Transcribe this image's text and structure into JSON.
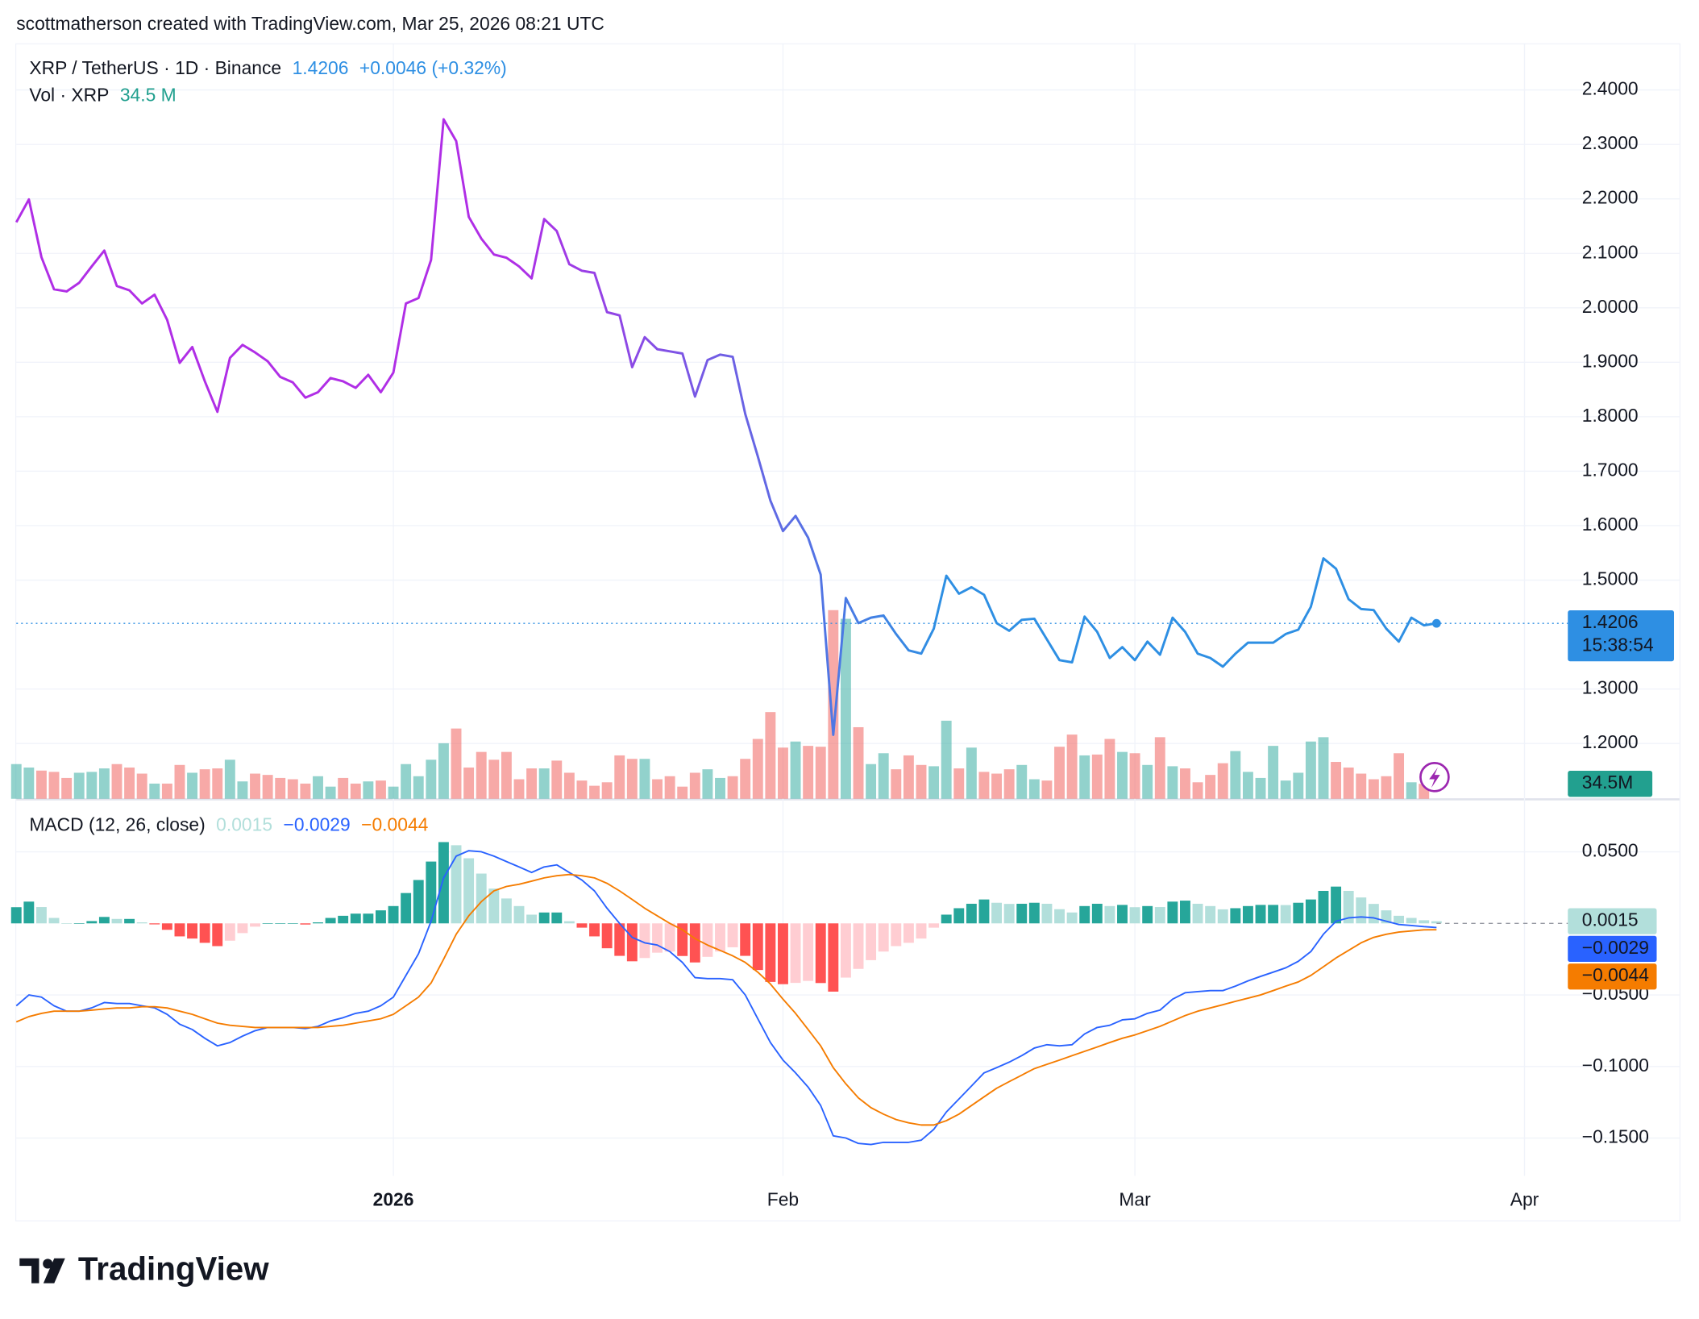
{
  "header": {
    "attribution": "scottmatherson created with TradingView.com, Mar 25, 2026 08:21 UTC"
  },
  "footer": {
    "logo": "TradingView"
  },
  "chart_data": [
    {
      "type": "line",
      "ylim": [
        1.0985,
        2.4856
      ],
      "yticks": [
        {
          "value": 2.4,
          "label": "2.4000"
        },
        {
          "value": 2.3,
          "label": "2.3000"
        },
        {
          "value": 2.2,
          "label": "2.2000"
        },
        {
          "value": 2.1,
          "label": "2.1000"
        },
        {
          "value": 2.0,
          "label": "2.0000"
        },
        {
          "value": 1.9,
          "label": "1.9000"
        },
        {
          "value": 1.8,
          "label": "1.8000"
        },
        {
          "value": 1.7,
          "label": "1.7000"
        },
        {
          "value": 1.6,
          "label": "1.6000"
        },
        {
          "value": 1.5,
          "label": "1.5000"
        },
        {
          "value": 1.3,
          "label": "1.3000"
        },
        {
          "value": 1.2,
          "label": "1.2000"
        }
      ],
      "grid": true,
      "change_label": "+0.0046 (+0.32%)",
      "countdown": "15:38:54",
      "series": [
        {
          "name": "XRP / TetherUS · 1D · Binance",
          "color": [
            "#b02ee6",
            "#2e8fe3"
          ],
          "values": [
            2.157,
            2.199,
            2.093,
            2.034,
            2.03,
            2.046,
            2.076,
            2.105,
            2.04,
            2.032,
            2.008,
            2.024,
            1.978,
            1.899,
            1.928,
            1.865,
            1.809,
            1.908,
            1.932,
            1.918,
            1.902,
            1.873,
            1.863,
            1.835,
            1.845,
            1.871,
            1.865,
            1.853,
            1.877,
            1.845,
            1.881,
            2.008,
            2.018,
            2.088,
            2.346,
            2.306,
            2.167,
            2.127,
            2.098,
            2.092,
            2.076,
            2.054,
            2.163,
            2.141,
            2.08,
            2.068,
            2.064,
            1.992,
            1.986,
            1.891,
            1.946,
            1.924,
            1.92,
            1.916,
            1.837,
            1.904,
            1.914,
            1.91,
            1.805,
            1.727,
            1.646,
            1.59,
            1.618,
            1.578,
            1.51,
            1.216,
            1.467,
            1.421,
            1.431,
            1.435,
            1.401,
            1.371,
            1.365,
            1.411,
            1.508,
            1.475,
            1.487,
            1.473,
            1.421,
            1.407,
            1.427,
            1.429,
            1.391,
            1.353,
            1.349,
            1.433,
            1.405,
            1.357,
            1.377,
            1.353,
            1.387,
            1.363,
            1.431,
            1.405,
            1.365,
            1.357,
            1.341,
            1.365,
            1.385,
            1.385,
            1.385,
            1.401,
            1.409,
            1.451,
            1.54,
            1.521,
            1.465,
            1.447,
            1.445,
            1.411,
            1.387,
            1.431,
            1.417,
            1.4206,
            null,
            null,
            null,
            null,
            null,
            null,
            null
          ]
        },
        {
          "name": "Vol · XRP",
          "type": "bar",
          "up_color": "#26a69a",
          "down_color": "#ef5350",
          "opacity": 0.5,
          "ylim": [
            0,
            1742
          ],
          "last_label": "34.5 M",
          "badge_label": "34.5M",
          "badge_color": "#22a08f",
          "values": [
            80,
            72,
            65,
            62,
            48,
            60,
            62,
            70,
            80,
            72,
            58,
            35,
            35,
            78,
            60,
            68,
            70,
            90,
            40,
            58,
            55,
            48,
            45,
            35,
            52,
            28,
            48,
            35,
            40,
            42,
            28,
            80,
            52,
            90,
            128,
            162,
            72,
            108,
            90,
            108,
            45,
            70,
            70,
            88,
            60,
            42,
            30,
            38,
            100,
            92,
            92,
            45,
            52,
            28,
            60,
            68,
            48,
            52,
            92,
            138,
            200,
            118,
            132,
            122,
            120,
            435,
            415,
            165,
            80,
            105,
            68,
            100,
            78,
            75,
            180,
            70,
            118,
            62,
            58,
            68,
            78,
            45,
            42,
            120,
            148,
            100,
            102,
            138,
            108,
            105,
            78,
            142,
            75,
            70,
            38,
            55,
            82,
            110,
            62,
            48,
            122,
            42,
            60,
            132,
            142,
            85,
            72,
            58,
            45,
            52,
            105,
            38,
            34.5,
            null,
            null,
            null,
            null,
            null,
            null,
            null
          ]
        }
      ]
    },
    {
      "type": "macd",
      "title": "MACD (12, 26, close)",
      "ylim": [
        -0.1765,
        0.0848
      ],
      "yticks": [
        {
          "value": 0.05,
          "label": "0.0500"
        },
        {
          "value": -0.05,
          "label": "−0.0500"
        },
        {
          "value": -0.1,
          "label": "−0.1000"
        },
        {
          "value": -0.15,
          "label": "−0.1500"
        }
      ],
      "grid": true,
      "categories": [
        null,
        null,
        null,
        null,
        null,
        null,
        null,
        null,
        null,
        null,
        null,
        null,
        null,
        null,
        null,
        null,
        null,
        null,
        null,
        null,
        null,
        null,
        null,
        null,
        null,
        null,
        null,
        null,
        null,
        null,
        "2026",
        null,
        null,
        null,
        null,
        null,
        null,
        null,
        null,
        null,
        null,
        null,
        null,
        null,
        null,
        null,
        null,
        null,
        null,
        null,
        null,
        null,
        null,
        null,
        null,
        null,
        null,
        null,
        null,
        null,
        null,
        "Feb",
        null,
        null,
        null,
        null,
        null,
        null,
        null,
        null,
        null,
        null,
        null,
        null,
        null,
        null,
        null,
        null,
        null,
        null,
        null,
        null,
        null,
        null,
        null,
        null,
        null,
        null,
        null,
        "Mar",
        null,
        null,
        null,
        null,
        null,
        null,
        null,
        null,
        null,
        null,
        null,
        null,
        null,
        null,
        null,
        null,
        null,
        null,
        null,
        null,
        null,
        null,
        null,
        null,
        null,
        null,
        null,
        null,
        null,
        null,
        "Apr"
      ],
      "histogram_colors": {
        "rising_up": "#26a69a",
        "falling_up": "#b2dfdb",
        "falling_down": "#ff5252",
        "rising_down": "#ffcdd2"
      },
      "series": [
        {
          "name": "Histogram",
          "type": "bar",
          "badge_color": "#b2dfdb",
          "values": [
            0.0113,
            0.0152,
            0.0114,
            0.0038,
            0,
            0,
            0.0016,
            0.0045,
            0.0031,
            0.0031,
            0.0007,
            -0.0007,
            -0.0045,
            -0.0091,
            -0.0106,
            -0.0136,
            -0.0159,
            -0.0121,
            -0.0068,
            -0.0023,
            0,
            0,
            0,
            -0.0008,
            0.0007,
            0.0038,
            0.0053,
            0.0068,
            0.0068,
            0.0091,
            0.0121,
            0.0212,
            0.0303,
            0.0432,
            0.0568,
            0.0546,
            0.0455,
            0.0348,
            0.0243,
            0.0174,
            0.0121,
            0.0061,
            0.0076,
            0.0076,
            0.0015,
            -0.003,
            -0.0091,
            -0.0174,
            -0.0227,
            -0.0265,
            -0.0242,
            -0.0205,
            -0.0197,
            -0.0228,
            -0.0273,
            -0.0234,
            -0.0197,
            -0.0167,
            -0.0227,
            -0.0326,
            -0.0409,
            -0.0425,
            -0.0416,
            -0.0402,
            -0.0417,
            -0.0477,
            -0.0379,
            -0.0318,
            -0.0257,
            -0.0197,
            -0.0159,
            -0.0136,
            -0.0106,
            -0.003,
            0.0061,
            0.0106,
            0.0137,
            0.0167,
            0.0144,
            0.0136,
            0.0137,
            0.0144,
            0.0137,
            0.0099,
            0.0076,
            0.0121,
            0.0137,
            0.0121,
            0.0129,
            0.0113,
            0.0121,
            0.0114,
            0.0152,
            0.0159,
            0.0137,
            0.0121,
            0.0098,
            0.0106,
            0.0121,
            0.0129,
            0.0129,
            0.0128,
            0.0144,
            0.0167,
            0.0227,
            0.0257,
            0.0227,
            0.0181,
            0.0136,
            0.0091,
            0.0053,
            0.0038,
            0.0022,
            0.0015,
            null,
            null,
            null,
            null,
            null,
            null,
            null
          ]
        },
        {
          "name": "MACD",
          "color": "#2962ff",
          "last_label": "−0.0029",
          "values": [
            -0.0576,
            -0.05,
            -0.0515,
            -0.0576,
            -0.0614,
            -0.0614,
            -0.059,
            -0.0553,
            -0.056,
            -0.056,
            -0.0576,
            -0.059,
            -0.0636,
            -0.0705,
            -0.0742,
            -0.0803,
            -0.0856,
            -0.0833,
            -0.0788,
            -0.075,
            -0.0727,
            -0.0727,
            -0.0727,
            -0.0735,
            -0.072,
            -0.0682,
            -0.0659,
            -0.0629,
            -0.0614,
            -0.0576,
            -0.0515,
            -0.0364,
            -0.0212,
            0.0015,
            0.0318,
            0.047,
            0.0508,
            0.05,
            0.047,
            0.0432,
            0.0394,
            0.0356,
            0.0394,
            0.0409,
            0.0356,
            0.0303,
            0.0227,
            0.0106,
            0,
            -0.0098,
            -0.0136,
            -0.0152,
            -0.0197,
            -0.0273,
            -0.0379,
            -0.0386,
            -0.0386,
            -0.0394,
            -0.05,
            -0.0667,
            -0.0833,
            -0.0955,
            -0.1045,
            -0.1144,
            -0.1273,
            -0.1485,
            -0.15,
            -0.1538,
            -0.1545,
            -0.153,
            -0.153,
            -0.153,
            -0.1515,
            -0.1439,
            -0.1318,
            -0.1227,
            -0.1136,
            -0.1045,
            -0.1008,
            -0.097,
            -0.0924,
            -0.0871,
            -0.0848,
            -0.0856,
            -0.0848,
            -0.0773,
            -0.0727,
            -0.0712,
            -0.0674,
            -0.0667,
            -0.0629,
            -0.0606,
            -0.053,
            -0.0485,
            -0.0477,
            -0.047,
            -0.047,
            -0.0439,
            -0.0402,
            -0.0371,
            -0.0341,
            -0.0311,
            -0.0265,
            -0.0197,
            -0.0076,
            0.0015,
            0.0038,
            0.0045,
            0.0038,
            0.0015,
            -0.0008,
            -0.0015,
            -0.0023,
            -0.0029,
            null,
            null,
            null,
            null,
            null,
            null,
            null
          ]
        },
        {
          "name": "Signal",
          "color": "#f57c00",
          "last_label": "−0.0044",
          "values": [
            -0.0689,
            -0.0652,
            -0.0629,
            -0.0614,
            -0.0614,
            -0.0614,
            -0.0606,
            -0.0598,
            -0.0591,
            -0.0591,
            -0.0583,
            -0.0583,
            -0.0591,
            -0.0614,
            -0.0636,
            -0.0667,
            -0.0697,
            -0.0712,
            -0.072,
            -0.0727,
            -0.0727,
            -0.0727,
            -0.0727,
            -0.0727,
            -0.0727,
            -0.072,
            -0.0712,
            -0.0697,
            -0.0682,
            -0.0667,
            -0.0636,
            -0.0576,
            -0.0515,
            -0.0417,
            -0.025,
            -0.0076,
            0.0053,
            0.0152,
            0.0227,
            0.0258,
            0.0273,
            0.0295,
            0.0318,
            0.0333,
            0.0341,
            0.0333,
            0.0318,
            0.028,
            0.0227,
            0.0167,
            0.0106,
            0.0053,
            0,
            -0.0045,
            -0.0106,
            -0.0152,
            -0.0189,
            -0.0227,
            -0.0273,
            -0.0341,
            -0.0424,
            -0.053,
            -0.0629,
            -0.0742,
            -0.0856,
            -0.1008,
            -0.1121,
            -0.122,
            -0.1288,
            -0.1333,
            -0.1371,
            -0.1394,
            -0.1409,
            -0.1409,
            -0.1379,
            -0.1333,
            -0.1273,
            -0.1212,
            -0.1152,
            -0.1106,
            -0.1061,
            -0.1015,
            -0.0985,
            -0.0955,
            -0.0924,
            -0.0894,
            -0.0864,
            -0.0833,
            -0.0803,
            -0.078,
            -0.075,
            -0.072,
            -0.0682,
            -0.0644,
            -0.0614,
            -0.0591,
            -0.0568,
            -0.0545,
            -0.0523,
            -0.05,
            -0.047,
            -0.0439,
            -0.0409,
            -0.0364,
            -0.0303,
            -0.0242,
            -0.0189,
            -0.0136,
            -0.0098,
            -0.0076,
            -0.0061,
            -0.0053,
            -0.0045,
            -0.0044,
            null,
            null,
            null,
            null,
            null,
            null,
            null
          ]
        }
      ]
    }
  ]
}
